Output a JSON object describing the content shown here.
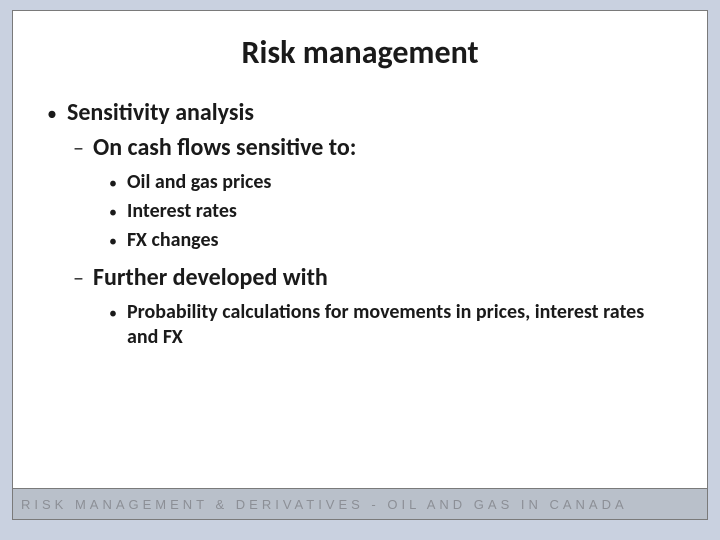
{
  "colors": {
    "slide_bg": "#c9d1e0",
    "panel_bg": "#ffffff",
    "panel_border": "#7a7a7a",
    "text": "#1a1a1a",
    "footer_bg": "#b9c0ca",
    "footer_text": "#8c8f96"
  },
  "typography": {
    "title_fontsize": 32,
    "lvl1_fontsize": 24,
    "lvl2_fontsize": 24,
    "lvl3_fontsize": 20,
    "footer_fontsize": 13,
    "footer_letter_spacing": 4
  },
  "title": "Risk management",
  "bullets": {
    "lvl1_0": "Sensitivity analysis",
    "lvl2_0": "On cash flows sensitive to:",
    "lvl3_0": "Oil and gas prices",
    "lvl3_1": "Interest rates",
    "lvl3_2": "FX changes",
    "lvl2_1": "Further developed with",
    "lvl3_3": "Probability calculations for movements in prices, interest rates and FX"
  },
  "footer": "RISK MANAGEMENT & DERIVATIVES - OIL AND GAS IN CANADA"
}
